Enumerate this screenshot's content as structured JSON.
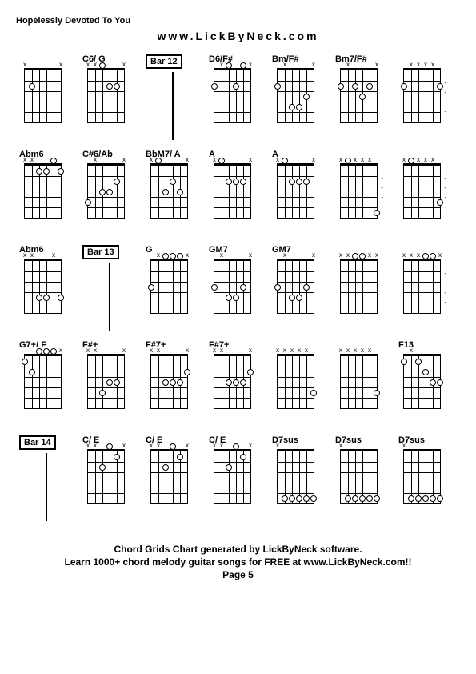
{
  "song_title": "Hopelessly Devoted To You",
  "website": "www.LickByNeck.com",
  "footer": {
    "line1": "Chord Grids Chart generated by LickByNeck software.",
    "line2": "Learn 1000+ chord melody guitar songs for FREE at www.LickByNeck.com!!",
    "page": "Page 5"
  },
  "chords": [
    {
      "label": "",
      "type": "chord",
      "markers": [
        "x",
        "",
        "",
        "",
        "",
        "x"
      ],
      "dots": [
        {
          "s": 1,
          "f": 2
        }
      ]
    },
    {
      "label": "C6/ G",
      "type": "chord",
      "markers": [
        "x",
        "x",
        "",
        "",
        "",
        "x"
      ],
      "dots": [
        {
          "s": 2,
          "f": 0
        },
        {
          "s": 3,
          "f": 2
        },
        {
          "s": 4,
          "f": 2
        }
      ]
    },
    {
      "label": "Bar 12",
      "type": "bar"
    },
    {
      "label": "D6/F#",
      "type": "chord",
      "markers": [
        "",
        "x",
        "",
        "",
        "",
        "x"
      ],
      "dots": [
        {
          "s": 0,
          "f": 2
        },
        {
          "s": 2,
          "f": 0
        },
        {
          "s": 3,
          "f": 2
        },
        {
          "s": 4,
          "f": 0
        }
      ]
    },
    {
      "label": "Bm/F#",
      "type": "chord",
      "markers": [
        "",
        "x",
        "",
        "",
        "",
        "x"
      ],
      "dots": [
        {
          "s": 0,
          "f": 2
        },
        {
          "s": 2,
          "f": 4
        },
        {
          "s": 3,
          "f": 4
        },
        {
          "s": 4,
          "f": 3
        }
      ]
    },
    {
      "label": "Bm7/F#",
      "type": "chord",
      "markers": [
        "",
        "x",
        "",
        "",
        "",
        "x"
      ],
      "dots": [
        {
          "s": 0,
          "f": 2
        },
        {
          "s": 2,
          "f": 2
        },
        {
          "s": 3,
          "f": 3
        },
        {
          "s": 4,
          "f": 2
        }
      ]
    },
    {
      "label": "",
      "type": "chord",
      "markers": [
        "",
        "x",
        "x",
        "x",
        "x",
        ""
      ],
      "dots": [
        {
          "s": 0,
          "f": 2
        },
        {
          "s": 5,
          "f": 2
        }
      ],
      "side": true
    },
    {
      "label": "Abm6",
      "type": "chord",
      "markers": [
        "x",
        "x",
        "",
        "",
        "",
        ""
      ],
      "dots": [
        {
          "s": 2,
          "f": 1
        },
        {
          "s": 3,
          "f": 1
        },
        {
          "s": 4,
          "f": 0
        },
        {
          "s": 5,
          "f": 1
        }
      ]
    },
    {
      "label": "C#6/Ab",
      "type": "chord",
      "markers": [
        "",
        "x",
        "",
        "",
        "",
        "x"
      ],
      "dots": [
        {
          "s": 0,
          "f": 4
        },
        {
          "s": 2,
          "f": 3
        },
        {
          "s": 3,
          "f": 3
        },
        {
          "s": 4,
          "f": 2
        }
      ]
    },
    {
      "label": "BbM7/ A",
      "type": "chord",
      "markers": [
        "x",
        "",
        "",
        "",
        "",
        "x"
      ],
      "dots": [
        {
          "s": 1,
          "f": 0
        },
        {
          "s": 2,
          "f": 3
        },
        {
          "s": 3,
          "f": 2
        },
        {
          "s": 4,
          "f": 3
        }
      ]
    },
    {
      "label": "A",
      "type": "chord",
      "markers": [
        "x",
        "",
        "",
        "",
        "",
        "x"
      ],
      "dots": [
        {
          "s": 1,
          "f": 0
        },
        {
          "s": 2,
          "f": 2
        },
        {
          "s": 3,
          "f": 2
        },
        {
          "s": 4,
          "f": 2
        }
      ]
    },
    {
      "label": "A",
      "type": "chord",
      "markers": [
        "x",
        "",
        "",
        "",
        "",
        "x"
      ],
      "dots": [
        {
          "s": 1,
          "f": 0
        },
        {
          "s": 2,
          "f": 2
        },
        {
          "s": 3,
          "f": 2
        },
        {
          "s": 4,
          "f": 2
        }
      ]
    },
    {
      "label": "",
      "type": "chord",
      "markers": [
        "x",
        "",
        "x",
        "x",
        "x",
        ""
      ],
      "dots": [
        {
          "s": 1,
          "f": 0
        },
        {
          "s": 5,
          "f": 5
        }
      ],
      "side": true
    },
    {
      "label": "",
      "type": "chord",
      "markers": [
        "x",
        "",
        "x",
        "x",
        "x",
        ""
      ],
      "dots": [
        {
          "s": 1,
          "f": 0
        },
        {
          "s": 5,
          "f": 4
        }
      ],
      "side": true
    },
    {
      "label": "Abm6",
      "type": "chord",
      "markers": [
        "x",
        "x",
        "",
        "",
        "x",
        ""
      ],
      "dots": [
        {
          "s": 2,
          "f": 4
        },
        {
          "s": 3,
          "f": 4
        },
        {
          "s": 5,
          "f": 4
        }
      ]
    },
    {
      "label": "Bar 13",
      "type": "bar"
    },
    {
      "label": "G",
      "type": "chord",
      "markers": [
        "",
        "x",
        "",
        "",
        "",
        "x"
      ],
      "dots": [
        {
          "s": 0,
          "f": 3
        },
        {
          "s": 2,
          "f": 0
        },
        {
          "s": 3,
          "f": 0
        },
        {
          "s": 4,
          "f": 0
        }
      ]
    },
    {
      "label": "GM7",
      "type": "chord",
      "markers": [
        "",
        "x",
        "",
        "",
        "",
        "x"
      ],
      "dots": [
        {
          "s": 0,
          "f": 3
        },
        {
          "s": 2,
          "f": 4
        },
        {
          "s": 3,
          "f": 4
        },
        {
          "s": 4,
          "f": 3
        }
      ]
    },
    {
      "label": "GM7",
      "type": "chord",
      "markers": [
        "",
        "x",
        "",
        "",
        "",
        "x"
      ],
      "dots": [
        {
          "s": 0,
          "f": 3
        },
        {
          "s": 2,
          "f": 4
        },
        {
          "s": 3,
          "f": 4
        },
        {
          "s": 4,
          "f": 3
        }
      ]
    },
    {
      "label": "",
      "type": "chord",
      "markers": [
        "x",
        "x",
        "",
        "",
        "x",
        "x"
      ],
      "dots": [
        {
          "s": 2,
          "f": 0
        },
        {
          "s": 3,
          "f": 0
        }
      ]
    },
    {
      "label": "",
      "type": "chord",
      "markers": [
        "x",
        "x",
        "x",
        "",
        "",
        "x"
      ],
      "dots": [
        {
          "s": 3,
          "f": 0
        },
        {
          "s": 4,
          "f": 0
        }
      ],
      "side": true
    },
    {
      "label": "G7+/ F",
      "type": "chord",
      "markers": [
        "",
        "",
        "",
        "",
        "",
        "x"
      ],
      "dots": [
        {
          "s": 0,
          "f": 1
        },
        {
          "s": 1,
          "f": 2
        },
        {
          "s": 2,
          "f": 0
        },
        {
          "s": 3,
          "f": 0
        },
        {
          "s": 4,
          "f": 0
        }
      ]
    },
    {
      "label": "F#+",
      "type": "chord",
      "markers": [
        "x",
        "x",
        "",
        "",
        "",
        "x"
      ],
      "dots": [
        {
          "s": 2,
          "f": 4
        },
        {
          "s": 3,
          "f": 3
        },
        {
          "s": 4,
          "f": 3
        }
      ]
    },
    {
      "label": "F#7+",
      "type": "chord",
      "markers": [
        "x",
        "x",
        "",
        "",
        "",
        "x"
      ],
      "dots": [
        {
          "s": 2,
          "f": 3
        },
        {
          "s": 3,
          "f": 3
        },
        {
          "s": 4,
          "f": 3
        },
        {
          "s": 5,
          "f": 2
        }
      ]
    },
    {
      "label": "F#7+",
      "type": "chord",
      "markers": [
        "x",
        "x",
        "",
        "",
        "",
        "x"
      ],
      "dots": [
        {
          "s": 2,
          "f": 3
        },
        {
          "s": 3,
          "f": 3
        },
        {
          "s": 4,
          "f": 3
        },
        {
          "s": 5,
          "f": 2
        }
      ]
    },
    {
      "label": "",
      "type": "chord",
      "markers": [
        "x",
        "x",
        "x",
        "x",
        "x",
        ""
      ],
      "dots": [
        {
          "s": 5,
          "f": 4
        }
      ]
    },
    {
      "label": "",
      "type": "chord",
      "markers": [
        "x",
        "x",
        "x",
        "x",
        "x",
        ""
      ],
      "dots": [
        {
          "s": 5,
          "f": 4
        }
      ]
    },
    {
      "label": "F13",
      "type": "chord",
      "markers": [
        "",
        "x",
        "",
        "",
        "",
        ""
      ],
      "dots": [
        {
          "s": 0,
          "f": 1
        },
        {
          "s": 2,
          "f": 1
        },
        {
          "s": 3,
          "f": 2
        },
        {
          "s": 4,
          "f": 3
        },
        {
          "s": 5,
          "f": 3
        }
      ]
    },
    {
      "label": "Bar 14",
      "type": "bar"
    },
    {
      "label": "C/ E",
      "type": "chord",
      "markers": [
        "x",
        "x",
        "",
        "",
        "",
        "x"
      ],
      "dots": [
        {
          "s": 2,
          "f": 2
        },
        {
          "s": 3,
          "f": 0
        },
        {
          "s": 4,
          "f": 1
        }
      ]
    },
    {
      "label": "C/ E",
      "type": "chord",
      "markers": [
        "x",
        "x",
        "",
        "",
        "",
        "x"
      ],
      "dots": [
        {
          "s": 2,
          "f": 2
        },
        {
          "s": 3,
          "f": 0
        },
        {
          "s": 4,
          "f": 1
        }
      ]
    },
    {
      "label": "C/ E",
      "type": "chord",
      "markers": [
        "x",
        "x",
        "",
        "",
        "",
        "x"
      ],
      "dots": [
        {
          "s": 2,
          "f": 2
        },
        {
          "s": 3,
          "f": 0
        },
        {
          "s": 4,
          "f": 1
        }
      ]
    },
    {
      "label": "D7sus",
      "type": "chord",
      "markers": [
        "x",
        "",
        "",
        "",
        "",
        ""
      ],
      "dots": [
        {
          "s": 1,
          "f": 5
        },
        {
          "s": 2,
          "f": 5
        },
        {
          "s": 3,
          "f": 5
        },
        {
          "s": 4,
          "f": 5
        },
        {
          "s": 5,
          "f": 5
        }
      ]
    },
    {
      "label": "D7sus",
      "type": "chord",
      "markers": [
        "x",
        "",
        "",
        "",
        "",
        ""
      ],
      "dots": [
        {
          "s": 1,
          "f": 5
        },
        {
          "s": 2,
          "f": 5
        },
        {
          "s": 3,
          "f": 5
        },
        {
          "s": 4,
          "f": 5
        },
        {
          "s": 5,
          "f": 5
        }
      ]
    },
    {
      "label": "D7sus",
      "type": "chord",
      "markers": [
        "x",
        "",
        "",
        "",
        "",
        ""
      ],
      "dots": [
        {
          "s": 1,
          "f": 5
        },
        {
          "s": 2,
          "f": 5
        },
        {
          "s": 3,
          "f": 5
        },
        {
          "s": 4,
          "f": 5
        },
        {
          "s": 5,
          "f": 5
        }
      ]
    }
  ]
}
